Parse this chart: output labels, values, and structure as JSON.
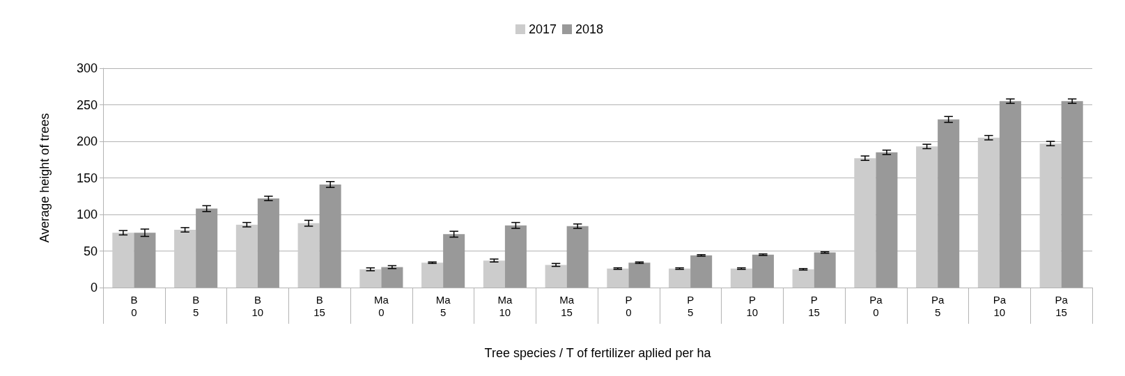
{
  "chart_data": {
    "type": "bar",
    "xlabel": "Tree species / T of fertilizer aplied per ha",
    "ylabel": "Average height of trees",
    "categories": [
      "B\n0",
      "B\n5",
      "B\n10",
      "B\n15",
      "Ma\n0",
      "Ma\n5",
      "Ma\n10",
      "Ma\n15",
      "P\n0",
      "P\n5",
      "P\n10",
      "P\n15",
      "Pa\n0",
      "Pa\n5",
      "Pa\n10",
      "Pa\n15"
    ],
    "series": [
      {
        "name": "2017",
        "color": "#cccccc",
        "values": [
          75,
          79,
          86,
          88,
          25,
          34,
          37,
          31,
          26,
          26,
          26,
          25,
          177,
          193,
          205,
          197
        ],
        "errors": [
          3,
          3,
          3,
          4,
          2,
          1,
          2,
          2,
          1,
          1,
          1,
          1,
          3,
          3,
          3,
          3
        ]
      },
      {
        "name": "2018",
        "color": "#999999",
        "values": [
          75,
          108,
          122,
          141,
          28,
          73,
          85,
          84,
          34,
          44,
          45,
          48,
          185,
          230,
          255,
          255
        ],
        "errors": [
          5,
          4,
          3,
          4,
          2,
          4,
          4,
          3,
          1,
          1,
          1,
          1,
          3,
          4,
          3,
          3
        ]
      }
    ],
    "ylim": [
      0,
      300
    ],
    "yticks": [
      0,
      50,
      100,
      150,
      200,
      250,
      300
    ],
    "grid": "y",
    "legend": "top"
  }
}
